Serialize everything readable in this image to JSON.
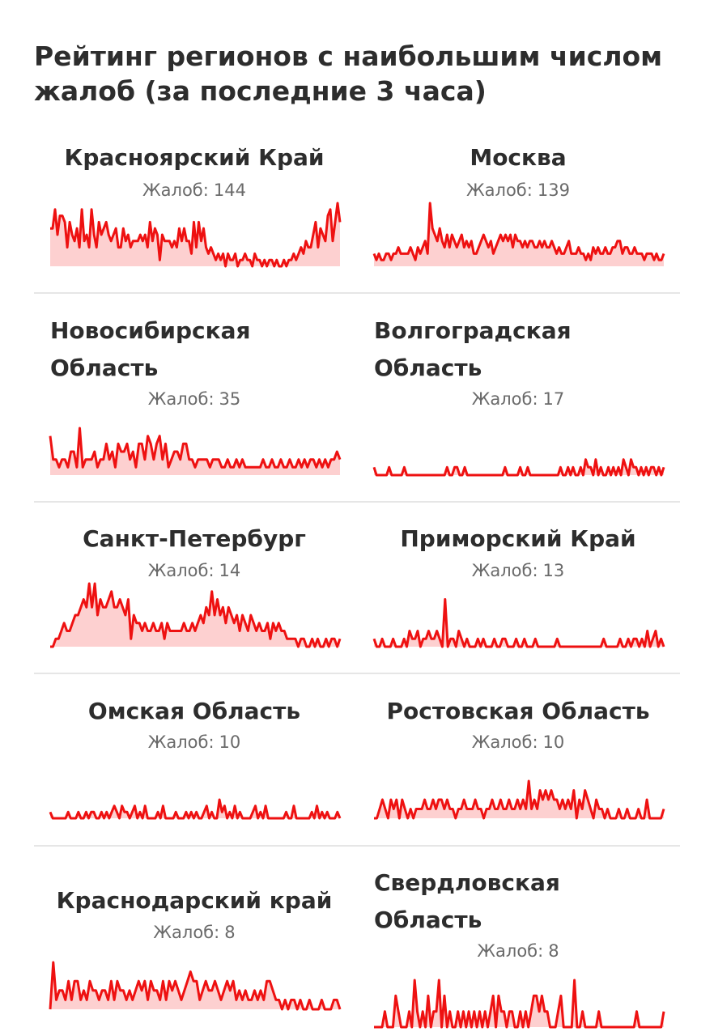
{
  "header": {
    "title": "Рейтинг регионов с наибольшим числом жалоб (за последние 3 часа)"
  },
  "count_label": "Жалоб:",
  "colors": {
    "line": "#ee1111",
    "fill": "#fdd0d0",
    "divider": "#e6e6e6"
  },
  "regions": [
    {
      "name": "Красноярский Край",
      "count": "144"
    },
    {
      "name": "Москва",
      "count": "139"
    },
    {
      "name": "Новосибирская Область",
      "count": "35"
    },
    {
      "name": "Волгоградская Область",
      "count": "17"
    },
    {
      "name": "Санкт-Петербург",
      "count": "14"
    },
    {
      "name": "Приморский Край",
      "count": "13"
    },
    {
      "name": "Омская Область",
      "count": "10"
    },
    {
      "name": "Ростовская Область",
      "count": "10"
    },
    {
      "name": "Краснодарский край",
      "count": "8"
    },
    {
      "name": "Свердловская Область",
      "count": "8"
    }
  ],
  "chart_data": [
    {
      "type": "area",
      "region": "Красноярский Край",
      "values": [
        6,
        6,
        9,
        5,
        8,
        8,
        7,
        3,
        7,
        5,
        4,
        6,
        3,
        9,
        4,
        5,
        3,
        9,
        5,
        3,
        7,
        5,
        6,
        7,
        5,
        4,
        5,
        6,
        3,
        3,
        6,
        4,
        5,
        3,
        4,
        4,
        4,
        5,
        4,
        5,
        3,
        7,
        4,
        6,
        5,
        1,
        5,
        4,
        4,
        4,
        3,
        4,
        3,
        6,
        4,
        6,
        4,
        4,
        2,
        7,
        3,
        7,
        4,
        6,
        3,
        2,
        3,
        2,
        1,
        2,
        1,
        2,
        0,
        2,
        1,
        1,
        2,
        0,
        1,
        1,
        2,
        1,
        1,
        0,
        2,
        1,
        1,
        0,
        1,
        0,
        1,
        1,
        0,
        1,
        0,
        0,
        1,
        0,
        1,
        1,
        2,
        1,
        2,
        3,
        2,
        4,
        3,
        3,
        5,
        7,
        3,
        6,
        5,
        4,
        8,
        9,
        4,
        7,
        10,
        7
      ],
      "ylim": [
        0,
        10
      ]
    },
    {
      "type": "area",
      "region": "Москва",
      "values": [
        2,
        1,
        2,
        1,
        1,
        2,
        2,
        1,
        2,
        2,
        3,
        2,
        2,
        2,
        2,
        3,
        2,
        1,
        3,
        2,
        3,
        4,
        2,
        10,
        6,
        5,
        4,
        6,
        4,
        3,
        5,
        3,
        5,
        4,
        3,
        4,
        5,
        3,
        4,
        3,
        4,
        2,
        2,
        3,
        4,
        5,
        4,
        3,
        4,
        2,
        3,
        4,
        5,
        4,
        5,
        4,
        5,
        3,
        5,
        4,
        4,
        3,
        4,
        3,
        4,
        4,
        3,
        3,
        4,
        3,
        4,
        3,
        3,
        4,
        3,
        2,
        3,
        2,
        2,
        3,
        4,
        2,
        2,
        2,
        3,
        2,
        2,
        1,
        2,
        1,
        3,
        2,
        3,
        2,
        2,
        3,
        2,
        2,
        3,
        3,
        4,
        4,
        2,
        3,
        3,
        2,
        2,
        3,
        2,
        2,
        2,
        1,
        2,
        2,
        2,
        1,
        2,
        1,
        1,
        2
      ],
      "ylim": [
        0,
        10
      ]
    },
    {
      "type": "area",
      "region": "Новосибирская Область",
      "values": [
        5,
        2,
        2,
        1,
        2,
        2,
        1,
        3,
        3,
        1,
        6,
        1,
        2,
        2,
        2,
        3,
        1,
        2,
        2,
        4,
        2,
        3,
        1,
        4,
        3,
        3,
        4,
        2,
        3,
        1,
        4,
        4,
        2,
        5,
        4,
        2,
        4,
        5,
        2,
        4,
        1,
        2,
        3,
        3,
        2,
        4,
        4,
        2,
        2,
        1,
        2,
        2,
        2,
        2,
        1,
        2,
        2,
        2,
        1,
        1,
        2,
        1,
        1,
        2,
        1,
        2,
        1,
        1,
        1,
        1,
        1,
        1,
        2,
        1,
        1,
        2,
        1,
        1,
        2,
        1,
        1,
        2,
        1,
        1,
        2,
        1,
        2,
        1,
        2,
        2,
        1,
        2,
        1,
        2,
        1,
        2,
        2,
        3,
        2
      ],
      "ylim": [
        0,
        6
      ]
    },
    {
      "type": "area",
      "region": "Волгоградская Область",
      "values": [
        1,
        0,
        0,
        0,
        0,
        0,
        1,
        0,
        0,
        0,
        0,
        0,
        1,
        0,
        0,
        0,
        0,
        0,
        0,
        0,
        0,
        0,
        0,
        0,
        0,
        0,
        0,
        0,
        0,
        1,
        0,
        0,
        1,
        1,
        0,
        0,
        1,
        0,
        0,
        0,
        0,
        0,
        0,
        0,
        0,
        0,
        0,
        0,
        0,
        0,
        0,
        0,
        1,
        0,
        0,
        0,
        0,
        0,
        1,
        0,
        0,
        1,
        0,
        0,
        0,
        0,
        0,
        0,
        0,
        0,
        0,
        0,
        0,
        0,
        1,
        0,
        0,
        1,
        0,
        1,
        0,
        0,
        1,
        0,
        2,
        1,
        1,
        0,
        2,
        0,
        1,
        0,
        0,
        1,
        0,
        1,
        0,
        1,
        0,
        2,
        1,
        0,
        2,
        1,
        1,
        0,
        1,
        0,
        1,
        0,
        1,
        1,
        0,
        1,
        0,
        1
      ],
      "ylim": [
        0,
        6
      ]
    },
    {
      "type": "area",
      "region": "Санкт-Петербург",
      "values": [
        0,
        0,
        1,
        1,
        2,
        3,
        2,
        2,
        3,
        4,
        4,
        5,
        6,
        5,
        8,
        5,
        8,
        4,
        6,
        5,
        5,
        6,
        7,
        5,
        5,
        6,
        5,
        4,
        6,
        1,
        4,
        3,
        3,
        2,
        3,
        2,
        2,
        3,
        2,
        2,
        3,
        1,
        3,
        2,
        2,
        2,
        2,
        2,
        3,
        2,
        2,
        3,
        2,
        3,
        4,
        3,
        5,
        4,
        7,
        4,
        6,
        4,
        5,
        3,
        5,
        4,
        3,
        4,
        2,
        4,
        3,
        2,
        4,
        3,
        2,
        3,
        2,
        2,
        3,
        1,
        3,
        2,
        3,
        2,
        2,
        1,
        1,
        1,
        1,
        0,
        1,
        1,
        0,
        0,
        1,
        0,
        1,
        0,
        0,
        1,
        0,
        1,
        1,
        0,
        1
      ],
      "ylim": [
        0,
        8
      ]
    },
    {
      "type": "area",
      "region": "Приморский Край",
      "values": [
        1,
        0,
        0,
        1,
        0,
        0,
        0,
        1,
        0,
        0,
        0,
        1,
        0,
        2,
        1,
        1,
        2,
        0,
        1,
        1,
        2,
        1,
        1,
        2,
        1,
        0,
        6,
        0,
        1,
        1,
        0,
        2,
        1,
        0,
        1,
        0,
        0,
        0,
        1,
        0,
        1,
        0,
        0,
        0,
        1,
        0,
        0,
        1,
        1,
        0,
        0,
        0,
        1,
        0,
        0,
        1,
        0,
        0,
        0,
        1,
        0,
        0,
        0,
        0,
        0,
        0,
        0,
        1,
        0,
        0,
        0,
        0,
        0,
        0,
        0,
        0,
        0,
        0,
        0,
        0,
        0,
        0,
        0,
        0,
        1,
        0,
        0,
        0,
        0,
        0,
        1,
        0,
        0,
        1,
        0,
        1,
        1,
        0,
        1,
        0,
        2,
        0,
        1,
        2,
        0,
        1,
        0
      ],
      "ylim": [
        0,
        8
      ]
    },
    {
      "type": "area",
      "region": "Омская Область",
      "values": [
        1,
        0,
        0,
        0,
        0,
        0,
        0,
        1,
        0,
        0,
        0,
        1,
        0,
        0,
        1,
        0,
        1,
        1,
        0,
        0,
        1,
        0,
        1,
        0,
        1,
        2,
        1,
        0,
        2,
        1,
        1,
        0,
        1,
        2,
        0,
        1,
        0,
        2,
        0,
        0,
        0,
        0,
        1,
        0,
        2,
        0,
        0,
        0,
        0,
        1,
        0,
        0,
        0,
        1,
        0,
        1,
        0,
        1,
        0,
        0,
        1,
        2,
        0,
        1,
        0,
        0,
        3,
        1,
        2,
        0,
        1,
        0,
        2,
        0,
        1,
        0,
        0,
        0,
        0,
        1,
        2,
        0,
        1,
        0,
        2,
        0,
        0,
        0,
        0,
        0,
        0,
        0,
        1,
        0,
        0,
        2,
        0,
        0,
        0,
        0,
        0,
        0,
        1,
        0,
        2,
        0,
        1,
        0,
        1,
        0,
        0,
        0,
        1,
        0
      ],
      "ylim": [
        0,
        6
      ]
    },
    {
      "type": "area",
      "region": "Ростовская Область",
      "values": [
        0,
        0,
        1,
        2,
        1,
        0,
        2,
        1,
        2,
        0,
        2,
        1,
        0,
        1,
        0,
        1,
        1,
        1,
        2,
        1,
        1,
        2,
        1,
        2,
        2,
        1,
        2,
        1,
        1,
        0,
        1,
        1,
        2,
        1,
        1,
        1,
        2,
        1,
        1,
        0,
        1,
        1,
        2,
        1,
        1,
        2,
        1,
        1,
        2,
        1,
        1,
        2,
        1,
        2,
        1,
        4,
        1,
        2,
        1,
        3,
        2,
        3,
        2,
        3,
        2,
        2,
        1,
        2,
        1,
        2,
        1,
        3,
        0,
        2,
        1,
        3,
        2,
        1,
        0,
        2,
        1,
        1,
        0,
        1,
        0,
        0,
        0,
        1,
        0,
        0,
        1,
        0,
        0,
        0,
        1,
        0,
        0,
        2,
        0,
        0,
        0,
        0,
        0,
        1
      ],
      "ylim": [
        0,
        4
      ]
    },
    {
      "type": "area",
      "region": "Краснодарский край",
      "values": [
        0,
        5,
        1,
        2,
        2,
        1,
        3,
        1,
        3,
        3,
        1,
        2,
        1,
        3,
        2,
        2,
        1,
        2,
        2,
        1,
        3,
        1,
        3,
        2,
        2,
        1,
        2,
        1,
        2,
        3,
        2,
        3,
        1,
        3,
        2,
        2,
        1,
        3,
        1,
        3,
        2,
        3,
        2,
        1,
        2,
        3,
        4,
        3,
        3,
        1,
        2,
        3,
        2,
        2,
        3,
        2,
        1,
        2,
        3,
        2,
        3,
        1,
        2,
        1,
        2,
        1,
        1,
        2,
        1,
        2,
        1,
        3,
        3,
        2,
        1,
        1,
        0,
        1,
        0,
        1,
        1,
        0,
        1,
        0,
        0,
        1,
        0,
        0,
        0,
        1,
        0,
        0,
        0,
        1,
        1,
        0
      ],
      "ylim": [
        0,
        5
      ]
    },
    {
      "type": "area",
      "region": "Свердловская Область",
      "values": [
        0,
        0,
        0,
        0,
        1,
        0,
        0,
        0,
        2,
        1,
        0,
        0,
        0,
        1,
        0,
        3,
        1,
        0,
        1,
        0,
        2,
        0,
        1,
        1,
        3,
        0,
        2,
        0,
        1,
        0,
        0,
        1,
        0,
        1,
        0,
        1,
        0,
        1,
        0,
        1,
        0,
        1,
        0,
        1,
        2,
        0,
        2,
        1,
        1,
        0,
        1,
        1,
        0,
        0,
        1,
        0,
        1,
        0,
        1,
        2,
        2,
        1,
        2,
        1,
        1,
        0,
        0,
        0,
        1,
        2,
        0,
        0,
        0,
        0,
        3,
        0,
        0,
        1,
        0,
        0,
        0,
        0,
        0,
        1,
        0,
        0,
        0,
        0,
        0,
        0,
        0,
        0,
        0,
        0,
        0,
        0,
        0,
        1,
        0,
        0,
        0,
        0,
        0,
        0,
        0,
        0,
        0,
        1
      ],
      "ylim": [
        0,
        3
      ]
    }
  ]
}
